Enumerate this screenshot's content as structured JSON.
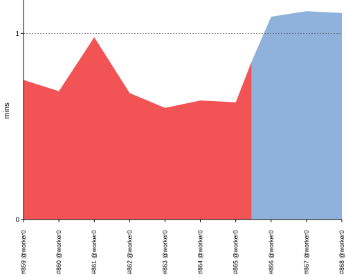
{
  "chart_data": {
    "type": "area",
    "ylabel": "mins",
    "yticks": [
      0,
      1
    ],
    "ylim": [
      0,
      1.18
    ],
    "reference_line": 1,
    "categories": [
      "#859 @worker0",
      "#860 @worker0",
      "#861 @worker0",
      "#862 @worker0",
      "#863 @worker0",
      "#864 @worker0",
      "#865 @worker0",
      "#866 @worker0",
      "#867 @worker0",
      "#868 @worker0"
    ],
    "series": [
      {
        "color": "#f25455",
        "points": [
          {
            "x": 0,
            "y": 0.75
          },
          {
            "x": 1,
            "y": 0.69
          },
          {
            "x": 2,
            "y": 0.98
          },
          {
            "x": 3,
            "y": 0.68
          },
          {
            "x": 4,
            "y": 0.6
          },
          {
            "x": 5,
            "y": 0.64
          },
          {
            "x": 5.5,
            "y": 0.635
          },
          {
            "x": 6,
            "y": 0.63
          },
          {
            "x": 6.45,
            "y": 0.85
          }
        ]
      },
      {
        "color": "#8fb2dc",
        "points": [
          {
            "x": 6.45,
            "y": 0.85
          },
          {
            "x": 7,
            "y": 1.09
          },
          {
            "x": 8,
            "y": 1.12
          },
          {
            "x": 9,
            "y": 1.11
          }
        ]
      }
    ]
  }
}
